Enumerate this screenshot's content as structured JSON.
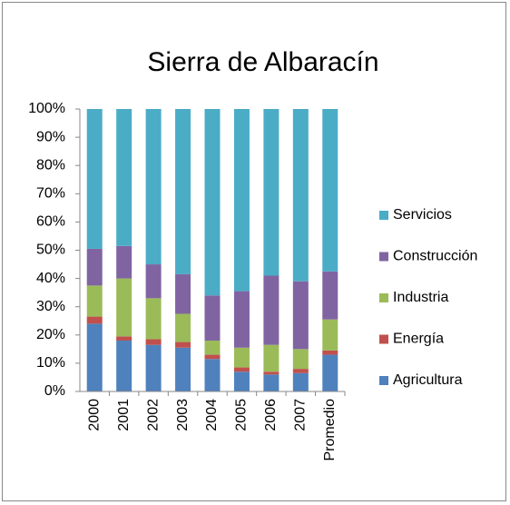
{
  "chart_data": {
    "type": "stacked_bar",
    "title": "Sierra de Albaracín",
    "categories": [
      "2000",
      "2001",
      "2002",
      "2003",
      "2004",
      "2005",
      "2006",
      "2007",
      "Promedio"
    ],
    "series": [
      {
        "name": "Agricultura",
        "color": "#4f81bd",
        "values": [
          24,
          18,
          16.5,
          15.5,
          11.5,
          7,
          6,
          6.5,
          13
        ]
      },
      {
        "name": "Energía",
        "color": "#c0504d",
        "values": [
          2.5,
          1.5,
          2,
          2,
          1.5,
          1.5,
          1,
          1.5,
          1.5
        ]
      },
      {
        "name": "Industria",
        "color": "#9bbb59",
        "values": [
          11,
          20.5,
          14.5,
          10,
          5,
          7,
          9.5,
          7,
          11
        ]
      },
      {
        "name": "Construcción",
        "color": "#8064a2",
        "values": [
          13,
          11.5,
          12,
          14,
          16,
          20,
          24.5,
          24,
          17
        ]
      },
      {
        "name": "Servicios",
        "color": "#4bacc6",
        "values": [
          49.5,
          48.5,
          55,
          58.5,
          66,
          64.5,
          59,
          61,
          57.5
        ]
      }
    ],
    "ylim": [
      0,
      100
    ],
    "yticks": [
      {
        "value": 0,
        "label": "0%"
      },
      {
        "value": 10,
        "label": "10%"
      },
      {
        "value": 20,
        "label": "20%"
      },
      {
        "value": 30,
        "label": "30%"
      },
      {
        "value": 40,
        "label": "40%"
      },
      {
        "value": 50,
        "label": "50%"
      },
      {
        "value": 60,
        "label": "60%"
      },
      {
        "value": 70,
        "label": "70%"
      },
      {
        "value": 80,
        "label": "80%"
      },
      {
        "value": 90,
        "label": "90%"
      },
      {
        "value": 100,
        "label": "100%"
      }
    ],
    "legend": "right"
  }
}
